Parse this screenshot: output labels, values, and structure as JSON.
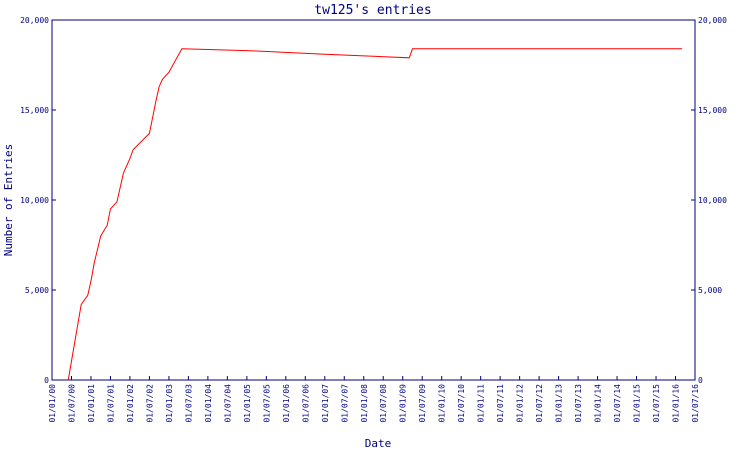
{
  "chart_data": {
    "type": "line",
    "title": "tw125's entries",
    "x_label": "Date",
    "y_label": "Number of Entries",
    "xlim": [
      "01/01/00",
      "01/07/16"
    ],
    "xticks": [
      "01/01/00",
      "01/07/00",
      "01/01/01",
      "01/07/01",
      "01/01/02",
      "01/07/02",
      "01/01/03",
      "01/07/03",
      "01/01/04",
      "01/07/04",
      "01/01/05",
      "01/07/05",
      "01/01/06",
      "01/07/06",
      "01/01/07",
      "01/07/07",
      "01/01/08",
      "01/07/08",
      "01/01/09",
      "01/07/09",
      "01/01/10",
      "01/07/10",
      "01/01/11",
      "01/07/11",
      "01/01/12",
      "01/07/12",
      "01/01/13",
      "01/07/13",
      "01/01/14",
      "01/07/14",
      "01/01/15",
      "01/07/15",
      "01/01/16",
      "01/07/16"
    ],
    "ylim": [
      0,
      20000
    ],
    "yticks": [
      0,
      {
        "value": 5000,
        "label": "5,000"
      },
      {
        "value": 10000,
        "label": "10,000"
      },
      {
        "value": 15000,
        "label": "15,000"
      },
      {
        "value": 20000,
        "label": "20,000"
      }
    ],
    "y2lim": [
      0,
      20000
    ],
    "y2ticks": [
      0,
      {
        "value": 5000,
        "label": "5,000"
      },
      {
        "value": 10000,
        "label": "10,000"
      },
      {
        "value": 15000,
        "label": "15,000"
      },
      {
        "value": 20000,
        "label": "20,000"
      }
    ],
    "x": [
      "01/06/00",
      "01/10/00",
      "01/12/00",
      "01/01/01",
      "01/02/01",
      "01/04/01",
      "01/06/01",
      "01/07/01",
      "01/09/01",
      "01/11/01",
      "01/01/02",
      "01/02/02",
      "01/07/02",
      "01/09/02",
      "01/10/02",
      "01/11/02",
      "01/01/03",
      "01/05/03",
      "01/01/05",
      "01/01/07",
      "01/03/09",
      "01/04/09",
      "01/03/16"
    ],
    "series": [
      {
        "name": "entries",
        "color": "#ff0000",
        "values": [
          0,
          4200,
          4700,
          5500,
          6500,
          8000,
          8600,
          9500,
          9900,
          11500,
          12300,
          12800,
          13700,
          15500,
          16300,
          16700,
          17100,
          18400,
          18300,
          18100,
          17900,
          18400,
          18400
        ]
      }
    ]
  }
}
